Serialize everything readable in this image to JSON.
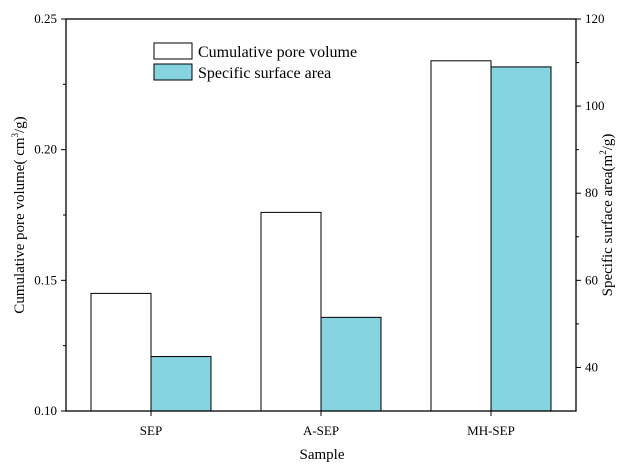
{
  "chart_data": {
    "type": "bar",
    "categories": [
      "SEP",
      "A-SEP",
      "MH-SEP"
    ],
    "series": [
      {
        "name": "Cumulative pore volume",
        "axis": "left",
        "fill": "#ffffff",
        "values": [
          0.145,
          0.176,
          0.234
        ]
      },
      {
        "name": "Specific surface area",
        "axis": "right",
        "fill": "#86d4e0",
        "values": [
          42.5,
          51.5,
          109.0
        ]
      }
    ],
    "xlabel": "Sample",
    "ylabel": {
      "main": "Cumulative pore volume(  cm",
      "sup": "3",
      "tail": "/g)"
    },
    "y2label": {
      "main": "Specific surface area(m",
      "sup": "2",
      "tail": "/g)"
    },
    "ylim": [
      0.1,
      0.25
    ],
    "y2lim": [
      30,
      120
    ],
    "yticks": [
      "0.10",
      "0.15",
      "0.20",
      "0.25"
    ],
    "y2ticks": [
      "40",
      "60",
      "80",
      "100",
      "120"
    ],
    "legend_position": "top-center",
    "grid": false
  }
}
